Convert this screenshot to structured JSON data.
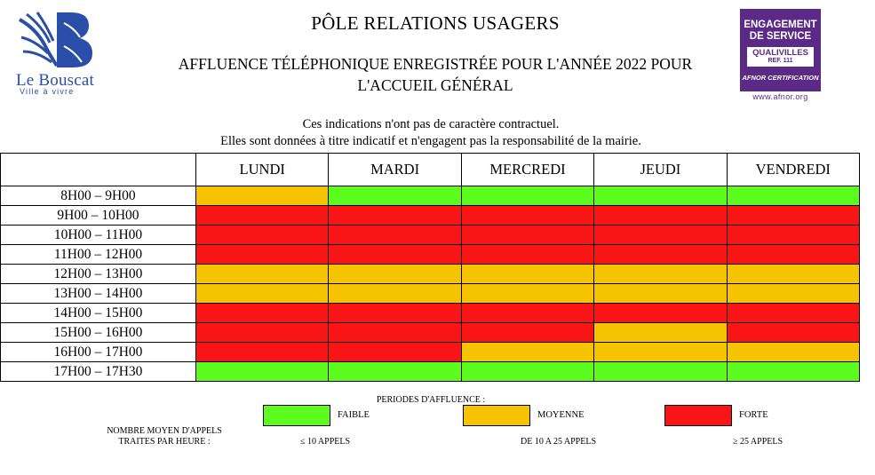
{
  "logo": {
    "name": "Le Bouscat",
    "tagline": "Ville à vivre"
  },
  "header": {
    "title": "PÔLE RELATIONS USAGERS",
    "subtitle_line1": "AFFLUENCE TÉLÉPHONIQUE ENREGISTRÉE POUR L'ANNÉE 2022 POUR",
    "subtitle_line2": "L'ACCUEIL GÉNÉRAL"
  },
  "badge": {
    "line1": "ENGAGEMENT",
    "line2": "DE SERVICE",
    "box_title": "QUALIVILLES",
    "box_ref": "REF. 111",
    "certification": "AFNOR CERTIFICATION",
    "url": "www.afnor.org"
  },
  "notice": {
    "line1": "Ces indications n'ont pas de caractère contractuel.",
    "line2": "Elles sont données à titre indicatif et n'engagent pas la responsabilité de la mairie."
  },
  "table": {
    "days": [
      "LUNDI",
      "MARDI",
      "MERCREDI",
      "JEUDI",
      "VENDREDI"
    ],
    "rows": [
      {
        "time": "8H00 – 9H00",
        "levels": [
          "moyenne",
          "faible",
          "faible",
          "faible",
          "faible"
        ]
      },
      {
        "time": "9H00 – 10H00",
        "levels": [
          "forte",
          "forte",
          "forte",
          "forte",
          "forte"
        ]
      },
      {
        "time": "10H00 – 11H00",
        "levels": [
          "forte",
          "forte",
          "forte",
          "forte",
          "forte"
        ]
      },
      {
        "time": "11H00 – 12H00",
        "levels": [
          "forte",
          "forte",
          "forte",
          "forte",
          "forte"
        ]
      },
      {
        "time": "12H00 – 13H00",
        "levels": [
          "moyenne",
          "moyenne",
          "moyenne",
          "moyenne",
          "moyenne"
        ]
      },
      {
        "time": "13H00 – 14H00",
        "levels": [
          "moyenne",
          "moyenne",
          "moyenne",
          "moyenne",
          "moyenne"
        ]
      },
      {
        "time": "14H00 – 15H00",
        "levels": [
          "forte",
          "forte",
          "forte",
          "forte",
          "forte"
        ]
      },
      {
        "time": "15H00 – 16H00",
        "levels": [
          "forte",
          "forte",
          "forte",
          "moyenne",
          "forte"
        ]
      },
      {
        "time": "16H00 – 17H00",
        "levels": [
          "forte",
          "forte",
          "moyenne",
          "moyenne",
          "moyenne"
        ]
      },
      {
        "time": "17H00 – 17H30",
        "levels": [
          "faible",
          "faible",
          "faible",
          "faible",
          "faible"
        ]
      }
    ]
  },
  "colors": {
    "faible": "#5dfc1f",
    "moyenne": "#f6c300",
    "forte": "#f91515",
    "brand_blue": "#2b4fa8",
    "badge_purple": "#5b2a86"
  },
  "legend": {
    "title": "PERIODES D'AFFLUENCE :",
    "faible_label": "FAIBLE",
    "moyenne_label": "MOYENNE",
    "forte_label": "FORTE",
    "calls_label_line1": "NOMBRE MOYEN D'APPELS",
    "calls_label_line2": "TRAITES PAR HEURE :",
    "faible_range": "≤ 10 APPELS",
    "moyenne_range": "DE 10 A 25 APPELS",
    "forte_range": "≥ 25 APPELS"
  }
}
